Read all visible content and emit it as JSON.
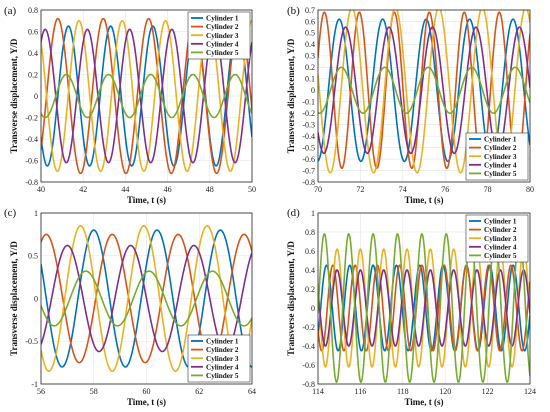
{
  "colors": {
    "cylinder_1": "#0072BD",
    "cylinder_2": "#D95319",
    "cylinder_3": "#EDB120",
    "cylinder_4": "#7E2F8E",
    "cylinder_5": "#77AC30"
  },
  "chart_data": [
    {
      "panel_label": "(a)",
      "type": "line",
      "xlabel": "Time, t (s)",
      "ylabel": "Transverse displacement, Y/D",
      "xlim": [
        40,
        50
      ],
      "ylim": [
        -0.8,
        0.8
      ],
      "xticks": [
        "40",
        "42",
        "44",
        "46",
        "48",
        "50"
      ],
      "yticks": [
        "-0.8",
        "-0.6",
        "-0.4",
        "-0.2",
        "0",
        "0.2",
        "0.4",
        "0.6",
        "0.8"
      ],
      "grid": true,
      "legend_position": "top-right",
      "series": [
        {
          "name": "Cylinder 1",
          "color": "#0072BD",
          "amplitude": 0.65,
          "period": 2.0,
          "phase_t": 41.3
        },
        {
          "name": "Cylinder 2",
          "color": "#D95319",
          "amplitude": 0.72,
          "period": 2.15,
          "phase_t": 40.8
        },
        {
          "name": "Cylinder 3",
          "color": "#EDB120",
          "amplitude": 0.7,
          "period": 2.05,
          "phase_t": 41.8
        },
        {
          "name": "Cylinder 4",
          "color": "#7E2F8E",
          "amplitude": 0.62,
          "period": 2.0,
          "phase_t": 42.2
        },
        {
          "name": "Cylinder 5",
          "color": "#77AC30",
          "amplitude": 0.2,
          "period": 2.0,
          "phase_t": 41.2
        }
      ]
    },
    {
      "panel_label": "(b)",
      "type": "line",
      "xlabel": "Time, t (s)",
      "ylabel": "Transverse displacement, Y/D",
      "xlim": [
        70,
        80
      ],
      "ylim": [
        -0.8,
        0.7
      ],
      "xticks": [
        "70",
        "72",
        "74",
        "76",
        "78",
        "80"
      ],
      "yticks": [
        "-0.8",
        "-0.7",
        "-0.6",
        "-0.5",
        "-0.4",
        "-0.3",
        "-0.2",
        "-0.1",
        "0",
        "0.1",
        "0.2",
        "0.3",
        "0.4",
        "0.5",
        "0.6",
        "0.7"
      ],
      "grid": true,
      "legend_position": "bottom-right",
      "series": [
        {
          "name": "Cylinder 1",
          "color": "#0072BD",
          "amplitude": 0.62,
          "period": 2.05,
          "phase_t": 71.0
        },
        {
          "name": "Cylinder 2",
          "color": "#D95319",
          "amplitude": 0.68,
          "period": 1.65,
          "phase_t": 70.3
        },
        {
          "name": "Cylinder 3",
          "color": "#EDB120",
          "amplitude": 0.72,
          "period": 2.05,
          "phase_t": 71.6
        },
        {
          "name": "Cylinder 4",
          "color": "#7E2F8E",
          "amplitude": 0.55,
          "period": 2.05,
          "phase_t": 71.3
        },
        {
          "name": "Cylinder 5",
          "color": "#77AC30",
          "amplitude": 0.2,
          "period": 2.05,
          "phase_t": 71.1
        }
      ]
    },
    {
      "panel_label": "(c)",
      "type": "line",
      "xlabel": "Time, t (s)",
      "ylabel": "Transverse displacement, Y/D",
      "xlim": [
        56,
        64
      ],
      "ylim": [
        -1,
        1
      ],
      "xticks": [
        "56",
        "58",
        "60",
        "62",
        "64"
      ],
      "yticks": [
        "-1",
        "-0.5",
        "0",
        "0.5",
        "1"
      ],
      "grid": true,
      "legend_position": "bottom-right",
      "series": [
        {
          "name": "Cylinder 1",
          "color": "#0072BD",
          "amplitude": 0.8,
          "period": 2.4,
          "phase_t": 60.4
        },
        {
          "name": "Cylinder 2",
          "color": "#D95319",
          "amplitude": 0.75,
          "period": 2.5,
          "phase_t": 58.7
        },
        {
          "name": "Cylinder 3",
          "color": "#EDB120",
          "amplitude": 0.85,
          "period": 2.4,
          "phase_t": 59.9
        },
        {
          "name": "Cylinder 4",
          "color": "#7E2F8E",
          "amplitude": 0.62,
          "period": 2.4,
          "phase_t": 59.4
        },
        {
          "name": "Cylinder 5",
          "color": "#77AC30",
          "amplitude": 0.32,
          "period": 2.4,
          "phase_t": 60.1
        }
      ]
    },
    {
      "panel_label": "(d)",
      "type": "line",
      "xlabel": "Time, t (s)",
      "ylabel": "Transverse displacement, Y/D",
      "xlim": [
        114,
        124
      ],
      "ylim": [
        -0.8,
        1
      ],
      "xticks": [
        "114",
        "116",
        "118",
        "120",
        "122",
        "124"
      ],
      "yticks": [
        "-0.8",
        "-0.6",
        "-0.4",
        "-0.2",
        "0",
        "0.2",
        "0.4",
        "0.6",
        "0.8",
        "1"
      ],
      "grid": true,
      "legend_position": "top-right",
      "series": [
        {
          "name": "Cylinder 1",
          "color": "#0072BD",
          "amplitude": 0.45,
          "period": 1.1,
          "phase_t": 114.4
        },
        {
          "name": "Cylinder 2",
          "color": "#D95319",
          "amplitude": 0.45,
          "period": 1.05,
          "phase_t": 114.7
        },
        {
          "name": "Cylinder 3",
          "color": "#EDB120",
          "amplitude": 0.62,
          "period": 1.1,
          "phase_t": 116.0
        },
        {
          "name": "Cylinder 4",
          "color": "#7E2F8E",
          "amplitude": 0.4,
          "period": 1.1,
          "phase_t": 114.9
        },
        {
          "name": "Cylinder 5",
          "color": "#77AC30",
          "amplitude": 0.78,
          "period": 1.15,
          "phase_t": 118.9
        }
      ]
    }
  ]
}
